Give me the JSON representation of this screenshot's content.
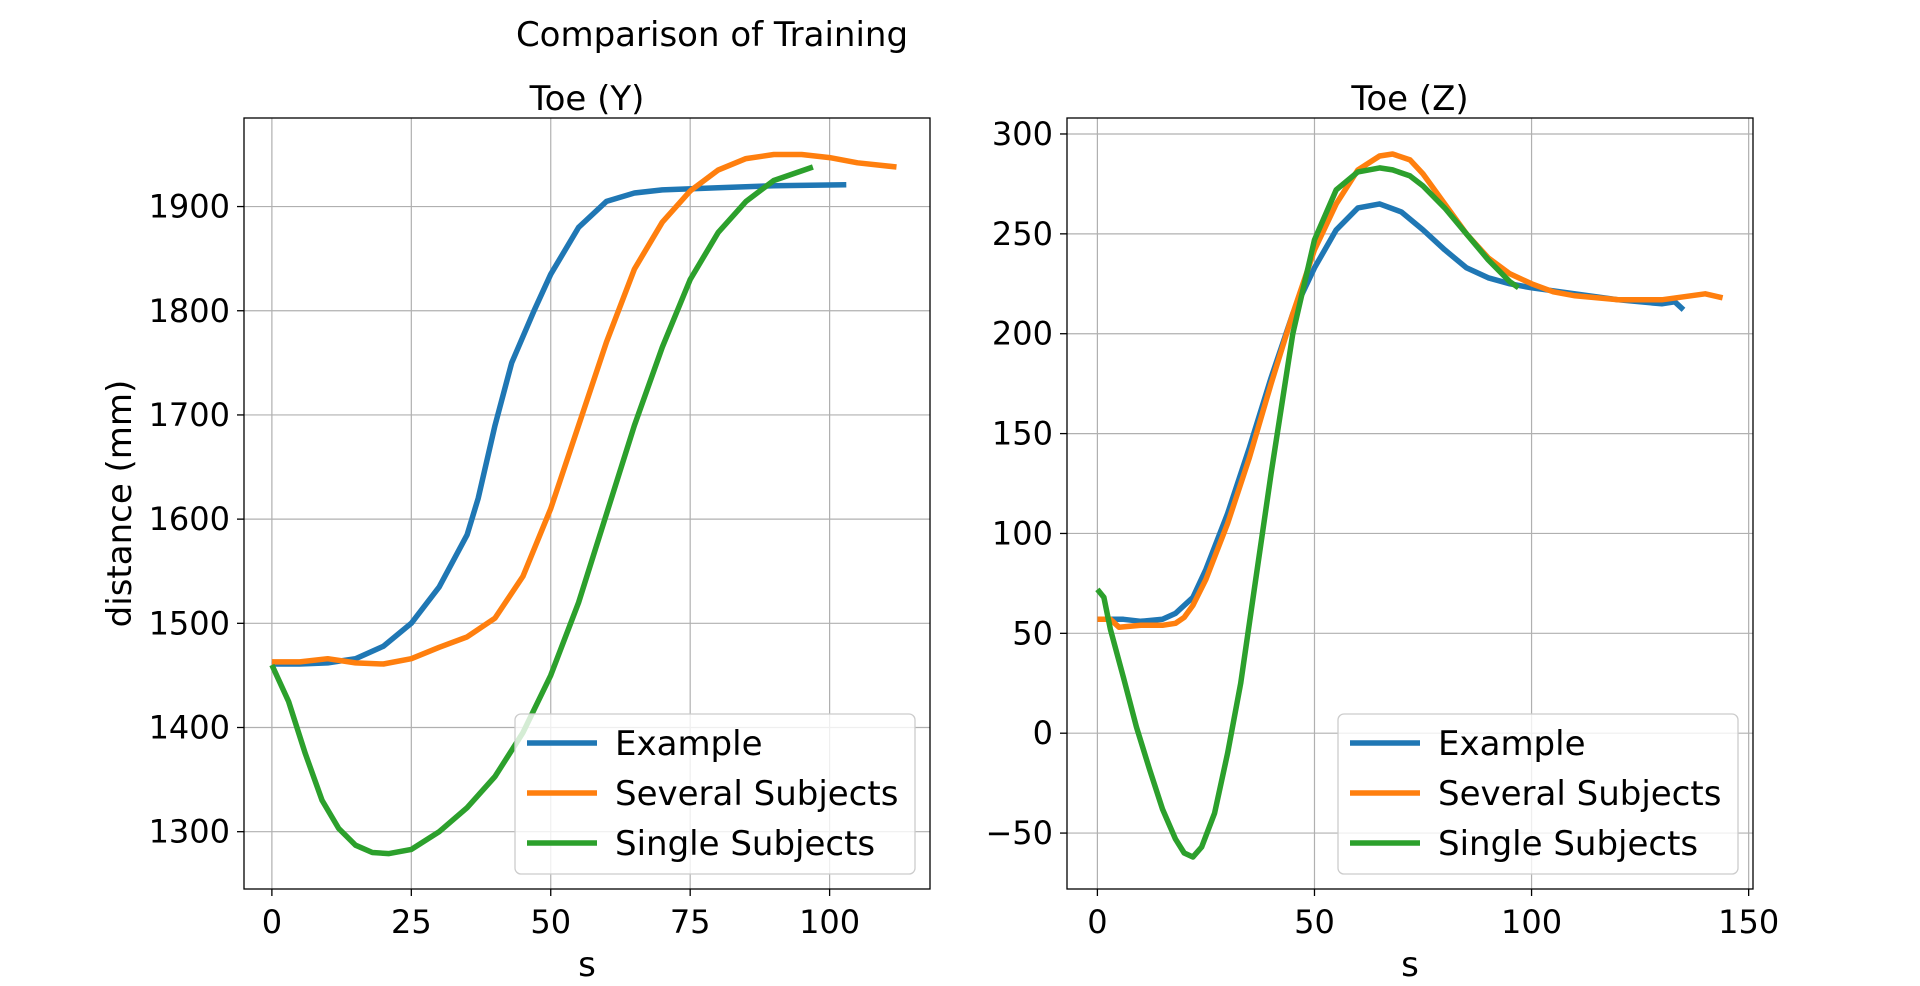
{
  "chart_data": {
    "title": "Comparison of Training",
    "colors": {
      "Example": "#1f77b4",
      "Several Subjects": "#ff7f0e",
      "Single Subjects": "#2ca02c"
    },
    "subplots": [
      {
        "type": "line",
        "title": "Toe (Y)",
        "xlabel": "s",
        "ylabel": "distance (mm)",
        "xlim": [
          -5,
          118
        ],
        "ylim": [
          1245,
          1985
        ],
        "xticks": [
          0,
          25,
          50,
          75,
          100
        ],
        "yticks": [
          1300,
          1400,
          1500,
          1600,
          1700,
          1800,
          1900
        ],
        "grid": true,
        "legend": "lower-right",
        "series": [
          {
            "name": "Example",
            "x": [
              0,
              5,
              10,
              15,
              20,
              25,
              30,
              35,
              37,
              40,
              43,
              47,
              50,
              55,
              60,
              65,
              70,
              80,
              90,
              103
            ],
            "y": [
              1461,
              1461,
              1462,
              1466,
              1478,
              1500,
              1535,
              1585,
              1620,
              1690,
              1750,
              1800,
              1835,
              1880,
              1905,
              1913,
              1916,
              1918,
              1920,
              1921
            ]
          },
          {
            "name": "Several Subjects",
            "x": [
              0,
              5,
              10,
              15,
              20,
              25,
              30,
              35,
              40,
              45,
              50,
              55,
              60,
              65,
              70,
              75,
              80,
              85,
              90,
              95,
              100,
              105,
              112
            ],
            "y": [
              1463,
              1463,
              1466,
              1462,
              1461,
              1466,
              1477,
              1487,
              1505,
              1545,
              1610,
              1690,
              1770,
              1840,
              1885,
              1915,
              1935,
              1946,
              1950,
              1950,
              1947,
              1942,
              1938
            ]
          },
          {
            "name": "Single Subjects",
            "x": [
              0,
              3,
              6,
              9,
              12,
              15,
              18,
              21,
              25,
              30,
              35,
              40,
              45,
              50,
              55,
              60,
              65,
              70,
              75,
              80,
              85,
              90,
              97
            ],
            "y": [
              1460,
              1425,
              1375,
              1330,
              1303,
              1287,
              1280,
              1279,
              1283,
              1300,
              1323,
              1353,
              1395,
              1450,
              1520,
              1605,
              1690,
              1765,
              1830,
              1875,
              1905,
              1925,
              1938
            ]
          }
        ]
      },
      {
        "type": "line",
        "title": "Toe (Z)",
        "xlabel": "s",
        "ylabel": "",
        "xlim": [
          -7,
          151
        ],
        "ylim": [
          -78,
          308
        ],
        "xticks": [
          0,
          50,
          100,
          150
        ],
        "yticks": [
          -50,
          0,
          50,
          100,
          150,
          200,
          250,
          300
        ],
        "grid": true,
        "legend": "lower-right",
        "series": [
          {
            "name": "Example",
            "x": [
              0,
              3,
              6,
              10,
              15,
              18,
              22,
              25,
              30,
              35,
              40,
              45,
              50,
              55,
              60,
              65,
              70,
              75,
              80,
              85,
              90,
              95,
              100,
              110,
              120,
              130,
              133,
              135
            ],
            "y": [
              57,
              57,
              57,
              56,
              57,
              60,
              68,
              82,
              110,
              143,
              178,
              210,
              233,
              252,
              263,
              265,
              261,
              252,
              242,
              233,
              228,
              225,
              223,
              220,
              217,
              215,
              216,
              212
            ]
          },
          {
            "name": "Several Subjects",
            "x": [
              0,
              3,
              5,
              10,
              15,
              18,
              20,
              22,
              25,
              30,
              35,
              40,
              45,
              50,
              55,
              60,
              65,
              68,
              72,
              75,
              80,
              85,
              90,
              95,
              100,
              105,
              110,
              120,
              130,
              140,
              144
            ],
            "y": [
              57,
              57,
              53,
              54,
              54,
              55,
              58,
              64,
              77,
              105,
              138,
              175,
              210,
              242,
              265,
              282,
              289,
              290,
              287,
              280,
              265,
              250,
              238,
              230,
              225,
              221,
              219,
              217,
              217,
              220,
              218
            ]
          },
          {
            "name": "Single Subjects",
            "x": [
              0,
              1.5,
              3,
              6,
              9,
              12,
              15,
              18,
              20,
              22,
              24,
              27,
              30,
              33,
              36,
              40,
              45,
              50,
              55,
              60,
              65,
              68,
              72,
              75,
              80,
              85,
              90,
              95,
              97
            ],
            "y": [
              72,
              68,
              52,
              28,
              3,
              -18,
              -38,
              -53,
              -60,
              -62,
              -57,
              -40,
              -10,
              25,
              70,
              130,
              200,
              247,
              272,
              281,
              283,
              282,
              279,
              274,
              263,
              250,
              237,
              226,
              223
            ]
          }
        ]
      }
    ]
  }
}
